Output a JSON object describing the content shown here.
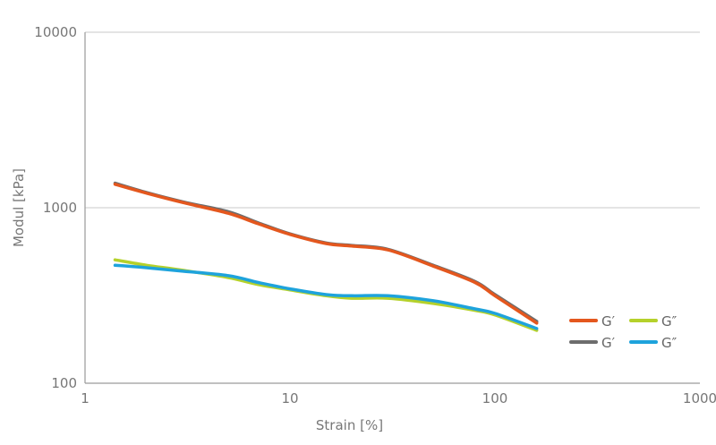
{
  "chart_data": {
    "type": "line",
    "xlabel": "Strain [%]",
    "ylabel": "Modul [kPa]",
    "x_scale": "log",
    "y_scale": "log",
    "xlim": [
      1,
      1000
    ],
    "ylim": [
      100,
      10000
    ],
    "x_ticks": [
      {
        "value": 1,
        "label": "1"
      },
      {
        "value": 10,
        "label": "10"
      },
      {
        "value": 100,
        "label": "100"
      },
      {
        "value": 1000,
        "label": "1000"
      }
    ],
    "y_ticks": [
      {
        "value": 100,
        "label": "100"
      },
      {
        "value": 1000,
        "label": "1000"
      },
      {
        "value": 10000,
        "label": "10000"
      }
    ],
    "grid": "horizontal",
    "legend": "bottom-right",
    "series": [
      {
        "name": "G′",
        "color": "#6d6d6d",
        "x": [
          1.4,
          2,
          3,
          5,
          7,
          10,
          15,
          20,
          30,
          50,
          80,
          100,
          160
        ],
        "y": [
          1380,
          1220,
          1080,
          950,
          820,
          710,
          630,
          610,
          580,
          470,
          380,
          320,
          225
        ]
      },
      {
        "name": "G′",
        "color": "#e4571e",
        "x": [
          1.4,
          2,
          3,
          5,
          7,
          10,
          15,
          20,
          30,
          50,
          80,
          100,
          160
        ],
        "y": [
          1360,
          1210,
          1070,
          930,
          810,
          705,
          625,
          605,
          575,
          465,
          375,
          315,
          220
        ]
      },
      {
        "name": "G″",
        "color": "#b5d12b",
        "x": [
          1.4,
          2,
          3,
          5,
          7,
          10,
          15,
          20,
          30,
          50,
          80,
          100,
          160
        ],
        "y": [
          505,
          470,
          440,
          400,
          365,
          340,
          315,
          305,
          305,
          285,
          260,
          245,
          200
        ]
      },
      {
        "name": "G″",
        "color": "#1ea3dc",
        "x": [
          1.4,
          2,
          3,
          5,
          7,
          10,
          15,
          20,
          30,
          50,
          80,
          100,
          160
        ],
        "y": [
          470,
          455,
          435,
          410,
          375,
          345,
          320,
          315,
          315,
          295,
          265,
          250,
          205
        ]
      }
    ],
    "legend_order": [
      1,
      2,
      0,
      3
    ]
  }
}
